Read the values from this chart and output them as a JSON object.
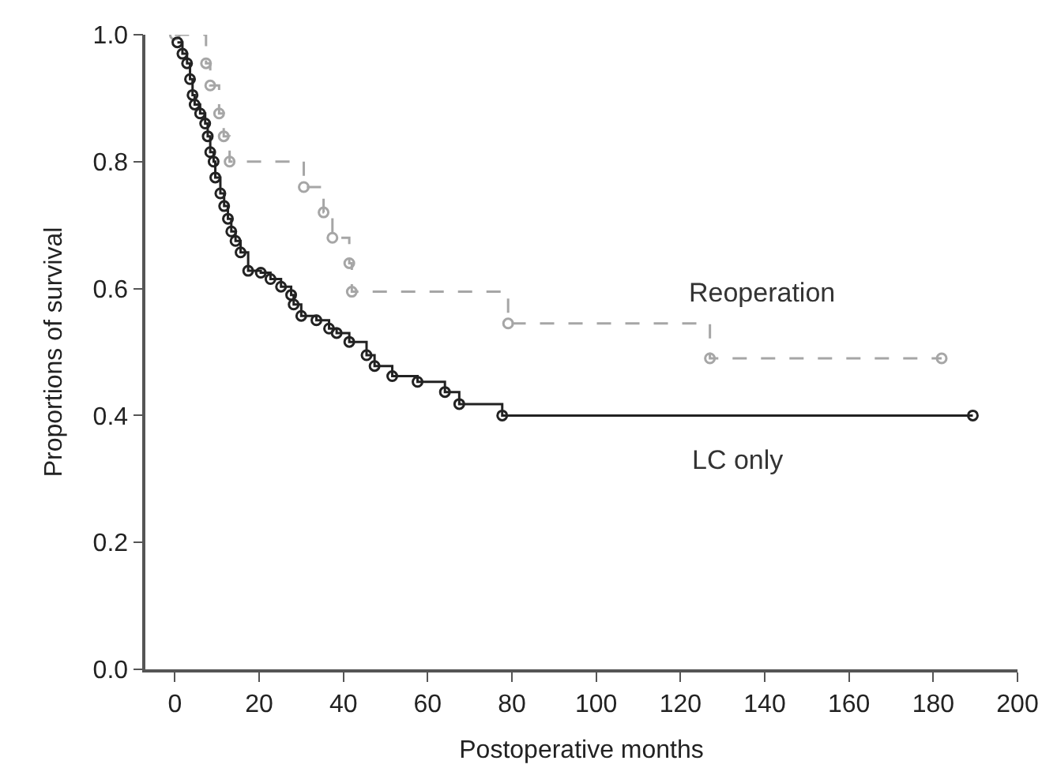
{
  "chart_data": {
    "type": "step",
    "xlabel": "Postoperative months",
    "ylabel": "Proportions of survival",
    "xlim": [
      -7,
      200
    ],
    "xticks": [
      0,
      20,
      40,
      60,
      80,
      100,
      120,
      140,
      160,
      180,
      200
    ],
    "ylim": [
      0,
      1.0
    ],
    "yticks": [
      {
        "value": 0,
        "label": "0.0"
      },
      {
        "value": 0.2,
        "label": "0.2"
      },
      {
        "value": 0.4,
        "label": "0.4"
      },
      {
        "value": 0.6,
        "label": "0.6"
      },
      {
        "value": 0.8,
        "label": "0.8"
      },
      {
        "value": 1.0,
        "label": "1.0"
      }
    ],
    "legend": false,
    "marker": "circle",
    "series": [
      {
        "name": "Reoperation",
        "color": "#a6a6a6",
        "line_style": "dashed",
        "x": [
          0,
          7.4,
          8.4,
          10.5,
          11.6,
          13,
          30.6,
          35.3,
          37.4,
          41.4,
          42,
          79.1,
          127,
          182
        ],
        "values": [
          1.0,
          0.955,
          0.92,
          0.876,
          0.84,
          0.8,
          0.76,
          0.72,
          0.68,
          0.64,
          0.595,
          0.545,
          0.49,
          0.49
        ]
      },
      {
        "name": "LC only",
        "color": "#222222",
        "line_style": "solid",
        "x": [
          0.6,
          1.8,
          2.9,
          3.6,
          4.2,
          4.7,
          6,
          7.2,
          7.8,
          8.4,
          9.2,
          9.6,
          10.8,
          11.7,
          12.6,
          13.4,
          14.4,
          15.6,
          17.4,
          20.4,
          22.7,
          25.2,
          27.6,
          28.2,
          30,
          33.6,
          36.6,
          38.4,
          41.4,
          45.5,
          47.4,
          51.6,
          57.6,
          64.1,
          67.5,
          77.7,
          189.4
        ],
        "values": [
          0.988,
          0.97,
          0.955,
          0.93,
          0.905,
          0.89,
          0.876,
          0.86,
          0.84,
          0.815,
          0.8,
          0.775,
          0.75,
          0.73,
          0.71,
          0.69,
          0.675,
          0.657,
          0.628,
          0.625,
          0.615,
          0.603,
          0.59,
          0.575,
          0.557,
          0.55,
          0.537,
          0.53,
          0.516,
          0.495,
          0.478,
          0.462,
          0.453,
          0.437,
          0.418,
          0.4,
          0.4
        ]
      }
    ]
  }
}
